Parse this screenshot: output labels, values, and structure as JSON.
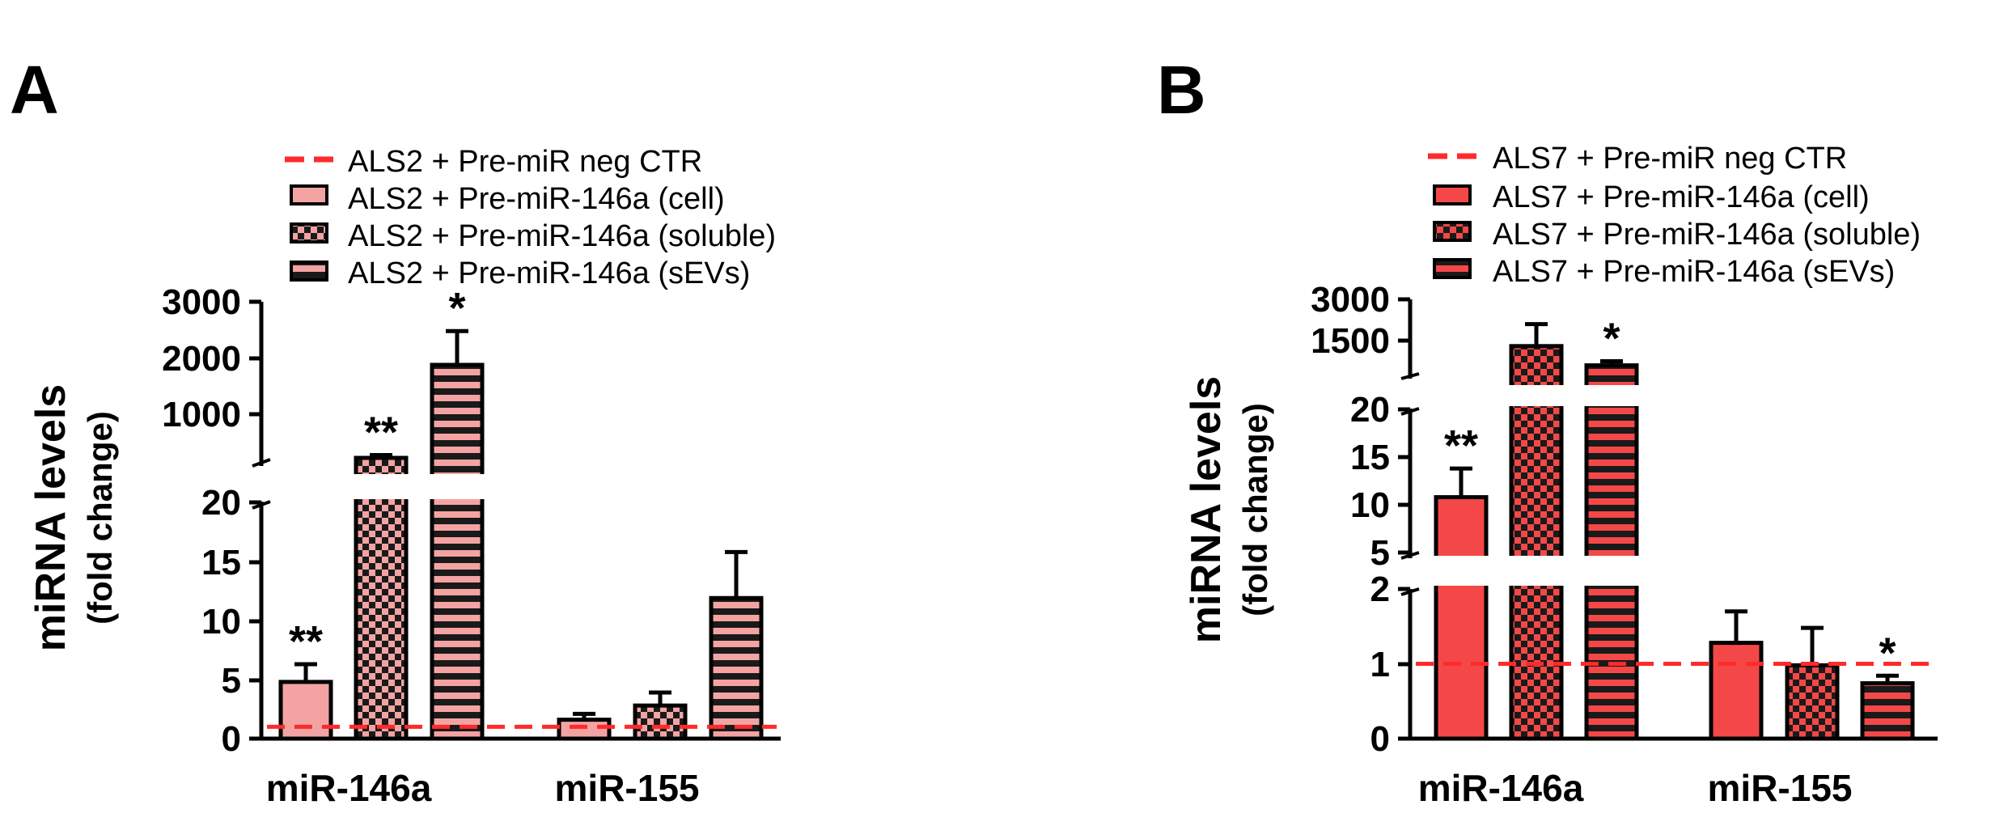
{
  "chart_data": [
    {
      "panel": "A",
      "type": "bar",
      "ylabel_line1": "miRNA levels",
      "ylabel_line2": "(fold change)",
      "categories": [
        "miR-146a",
        "miR-155"
      ],
      "axis_segments": [
        {
          "range": [
            0,
            20
          ],
          "ticks": [
            "0",
            "5",
            "10",
            "15",
            "20"
          ]
        },
        {
          "range": [
            0,
            3000
          ],
          "ticks": [
            "1000",
            "2000",
            "3000"
          ]
        }
      ],
      "reference_line": {
        "label": "ALS2 + Pre-miR neg CTR",
        "value": 1
      },
      "series": [
        {
          "name": "ALS2 + Pre-miR-146a (cell)",
          "values": [
            4.8,
            1.6
          ],
          "errors": [
            1.5,
            0.5
          ],
          "significance": [
            "**",
            ""
          ]
        },
        {
          "name": "ALS2 + Pre-miR-146a (soluble)",
          "values": [
            230,
            2.8
          ],
          "errors": [
            50,
            1.1
          ],
          "significance": [
            "**",
            ""
          ]
        },
        {
          "name": "ALS2 + Pre-miR-146a (sEVs)",
          "values": [
            1880,
            11.9
          ],
          "errors": [
            600,
            3.9
          ],
          "significance": [
            "*",
            ""
          ]
        }
      ],
      "bar_color": "#f4a3a3"
    },
    {
      "panel": "B",
      "type": "bar",
      "ylabel_line1": "miRNA levels",
      "ylabel_line2": "(fold change)",
      "categories": [
        "miR-146a",
        "miR-155"
      ],
      "axis_segments": [
        {
          "range": [
            0,
            2
          ],
          "ticks": [
            "0",
            "1",
            "2"
          ]
        },
        {
          "range": [
            5,
            20
          ],
          "ticks": [
            "5",
            "10",
            "15",
            "20"
          ]
        },
        {
          "range": [
            0,
            3000
          ],
          "ticks": [
            "1500",
            "3000"
          ]
        }
      ],
      "reference_line": {
        "label": "ALS7 + Pre-miR neg CTR",
        "value": 1
      },
      "series": [
        {
          "name": "ALS7 + Pre-miR-146a (cell)",
          "values": [
            10.8,
            1.28
          ],
          "errors": [
            3.0,
            0.42
          ],
          "significance": [
            "**",
            ""
          ]
        },
        {
          "name": "ALS7 + Pre-miR-146a (soluble)",
          "values": [
            1300,
            0.98
          ],
          "errors": [
            800,
            0.5
          ],
          "significance": [
            "",
            ""
          ]
        },
        {
          "name": "ALS7 + Pre-miR-146a (sEVs)",
          "values": [
            600,
            0.74
          ],
          "errors": [
            150,
            0.1
          ],
          "significance": [
            "*",
            "*"
          ]
        }
      ],
      "bar_color": "#f44848"
    }
  ],
  "panel_labels": [
    "A",
    "B"
  ],
  "colors": {
    "reference_line": "#ff2a2a",
    "axis": "#000000"
  }
}
